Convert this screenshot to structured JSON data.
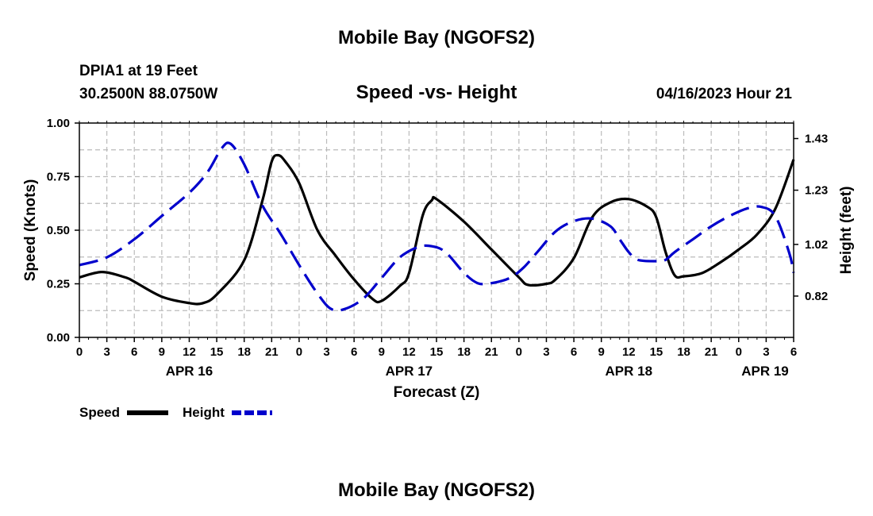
{
  "chart_data": {
    "type": "line",
    "title": "Mobile Bay (NGOFS2)",
    "subtitle": "Speed -vs- Height",
    "footer_title": "Mobile Bay (NGOFS2)",
    "station": "DPIA1 at 19 Feet",
    "location": "30.2500N  88.0750W",
    "datetime": "04/16/2023 Hour 21",
    "xlabel": "Forecast (Z)",
    "ylabel": "Speed (Knots)",
    "y2label": "Height (feet)",
    "x_range_hours": [
      0,
      78
    ],
    "ylim": [
      0,
      1
    ],
    "y2lim": [
      0.66,
      1.49
    ],
    "grid": true,
    "x_ticks": [
      {
        "h": 0,
        "label": "0"
      },
      {
        "h": 3,
        "label": "3"
      },
      {
        "h": 6,
        "label": "6"
      },
      {
        "h": 9,
        "label": "9"
      },
      {
        "h": 12,
        "label": "12"
      },
      {
        "h": 15,
        "label": "15"
      },
      {
        "h": 18,
        "label": "18"
      },
      {
        "h": 21,
        "label": "21"
      },
      {
        "h": 24,
        "label": "0"
      },
      {
        "h": 27,
        "label": "3"
      },
      {
        "h": 30,
        "label": "6"
      },
      {
        "h": 33,
        "label": "9"
      },
      {
        "h": 36,
        "label": "12"
      },
      {
        "h": 39,
        "label": "15"
      },
      {
        "h": 42,
        "label": "18"
      },
      {
        "h": 45,
        "label": "21"
      },
      {
        "h": 48,
        "label": "0"
      },
      {
        "h": 51,
        "label": "3"
      },
      {
        "h": 54,
        "label": "6"
      },
      {
        "h": 57,
        "label": "9"
      },
      {
        "h": 60,
        "label": "12"
      },
      {
        "h": 63,
        "label": "15"
      },
      {
        "h": 66,
        "label": "18"
      },
      {
        "h": 69,
        "label": "21"
      },
      {
        "h": 72,
        "label": "0"
      },
      {
        "h": 75,
        "label": "3"
      },
      {
        "h": 78,
        "label": "6"
      }
    ],
    "date_labels": [
      {
        "h": 12,
        "label": "APR 16"
      },
      {
        "h": 36,
        "label": "APR 17"
      },
      {
        "h": 60,
        "label": "APR 18"
      },
      {
        "h": 78,
        "label": "APR 19"
      }
    ],
    "y_ticks": [
      {
        "v": 0.0,
        "label": "0.00"
      },
      {
        "v": 0.25,
        "label": "0.25"
      },
      {
        "v": 0.5,
        "label": "0.50"
      },
      {
        "v": 0.75,
        "label": "0.75"
      },
      {
        "v": 1.0,
        "label": "1.00"
      }
    ],
    "y2_ticks": [
      {
        "v": 0.82,
        "label": "0.82"
      },
      {
        "v": 1.02,
        "label": "1.02"
      },
      {
        "v": 1.23,
        "label": "1.23"
      },
      {
        "v": 1.43,
        "label": "1.43"
      }
    ],
    "series": [
      {
        "name": "Speed",
        "axis": "left",
        "color": "#000000",
        "dashed": false,
        "points": [
          [
            0,
            0.28
          ],
          [
            2.5,
            0.305
          ],
          [
            5,
            0.28
          ],
          [
            6,
            0.26
          ],
          [
            9,
            0.19
          ],
          [
            12,
            0.16
          ],
          [
            13.5,
            0.16
          ],
          [
            15,
            0.2
          ],
          [
            18,
            0.36
          ],
          [
            20,
            0.64
          ],
          [
            21,
            0.82
          ],
          [
            21.7,
            0.85
          ],
          [
            22.5,
            0.82
          ],
          [
            24,
            0.72
          ],
          [
            26,
            0.5
          ],
          [
            28,
            0.38
          ],
          [
            30,
            0.27
          ],
          [
            32,
            0.18
          ],
          [
            33,
            0.17
          ],
          [
            35,
            0.24
          ],
          [
            36,
            0.3
          ],
          [
            37.5,
            0.57
          ],
          [
            38.5,
            0.64
          ],
          [
            39,
            0.645
          ],
          [
            42,
            0.54
          ],
          [
            45,
            0.41
          ],
          [
            48,
            0.28
          ],
          [
            49,
            0.245
          ],
          [
            51,
            0.25
          ],
          [
            52,
            0.27
          ],
          [
            54,
            0.37
          ],
          [
            56,
            0.56
          ],
          [
            58,
            0.63
          ],
          [
            60,
            0.645
          ],
          [
            62,
            0.61
          ],
          [
            63,
            0.56
          ],
          [
            64,
            0.4
          ],
          [
            65,
            0.29
          ],
          [
            66,
            0.285
          ],
          [
            68,
            0.3
          ],
          [
            70,
            0.35
          ],
          [
            72,
            0.41
          ],
          [
            74,
            0.48
          ],
          [
            76,
            0.6
          ],
          [
            78,
            0.83
          ]
        ]
      },
      {
        "name": "Height",
        "axis": "right",
        "color": "#0000cc",
        "dashed": true,
        "points": [
          [
            0,
            0.94
          ],
          [
            3,
            0.97
          ],
          [
            6,
            1.04
          ],
          [
            9,
            1.13
          ],
          [
            12,
            1.22
          ],
          [
            14,
            1.3
          ],
          [
            15.5,
            1.39
          ],
          [
            16.5,
            1.41
          ],
          [
            18,
            1.33
          ],
          [
            20,
            1.17
          ],
          [
            22,
            1.06
          ],
          [
            24,
            0.94
          ],
          [
            26,
            0.83
          ],
          [
            27.5,
            0.77
          ],
          [
            29,
            0.77
          ],
          [
            31,
            0.81
          ],
          [
            33,
            0.89
          ],
          [
            35,
            0.97
          ],
          [
            37,
            1.01
          ],
          [
            38.5,
            1.013
          ],
          [
            40,
            0.99
          ],
          [
            42,
            0.91
          ],
          [
            43.5,
            0.87
          ],
          [
            45,
            0.87
          ],
          [
            47,
            0.89
          ],
          [
            48.5,
            0.93
          ],
          [
            50,
            0.99
          ],
          [
            52,
            1.07
          ],
          [
            54,
            1.11
          ],
          [
            56,
            1.12
          ],
          [
            58,
            1.09
          ],
          [
            59,
            1.04
          ],
          [
            60,
            0.99
          ],
          [
            61,
            0.96
          ],
          [
            63,
            0.955
          ],
          [
            64,
            0.96
          ],
          [
            65,
            0.99
          ],
          [
            67,
            1.04
          ],
          [
            69,
            1.09
          ],
          [
            71,
            1.13
          ],
          [
            73,
            1.16
          ],
          [
            74.5,
            1.165
          ],
          [
            76,
            1.13
          ],
          [
            77.5,
            0.99
          ],
          [
            78,
            0.91
          ]
        ]
      }
    ],
    "legend": [
      {
        "label": "Speed",
        "color": "#000000",
        "dashed": false
      },
      {
        "label": "Height",
        "color": "#0000cc",
        "dashed": true
      }
    ]
  }
}
